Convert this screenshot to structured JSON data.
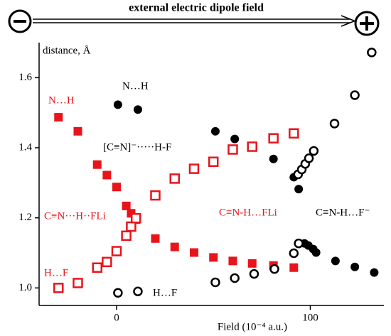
{
  "chart_data": {
    "type": "scatter",
    "title": "external electric dipole field",
    "xlabel": "Field (10⁻⁴ a.u.)",
    "ylabel": "distance, Å",
    "xlim": [
      -40,
      138
    ],
    "ylim": [
      0.95,
      1.7
    ],
    "xticks": [
      0,
      100
    ],
    "yticks": [
      {
        "value": 1,
        "label": "1.0"
      },
      1.2,
      1.4,
      1.6
    ],
    "series": [
      {
        "color": "#e8141c",
        "marker": "square",
        "filled": true,
        "x": [
          -30,
          -20,
          -10,
          -5,
          0,
          5,
          7.5,
          10,
          20,
          30,
          40,
          50,
          60,
          70,
          81,
          91.5
        ],
        "values": [
          1.487,
          1.447,
          1.352,
          1.322,
          1.288,
          1.234,
          1.213,
          1.195,
          1.141,
          1.117,
          1.101,
          1.087,
          1.077,
          1.07,
          1.064,
          1.058
        ]
      },
      {
        "color": "#e8141c",
        "marker": "square",
        "filled": false,
        "x": [
          -30,
          -20,
          -10,
          -5,
          0,
          5,
          7.5,
          10,
          20,
          30,
          40,
          50,
          60,
          70,
          81,
          91.5
        ],
        "values": [
          1.0,
          1.014,
          1.058,
          1.074,
          1.105,
          1.149,
          1.175,
          1.199,
          1.264,
          1.312,
          1.34,
          1.36,
          1.395,
          1.403,
          1.427,
          1.441
        ]
      },
      {
        "color": "#000000",
        "marker": "circle",
        "filled": true,
        "x": [
          0.7,
          11,
          51,
          61,
          81,
          91.5,
          94,
          97,
          99,
          101.5,
          103,
          113,
          123,
          133
        ],
        "values": [
          1.523,
          1.509,
          1.447,
          1.425,
          1.368,
          1.316,
          1.282,
          1.127,
          1.121,
          1.111,
          1.101,
          1.077,
          1.06,
          1.044
        ]
      },
      {
        "color": "#000000",
        "marker": "circle",
        "filled": false,
        "x": [
          0.7,
          11,
          51,
          61,
          71,
          81.5,
          91.5,
          94,
          93.7,
          95.6,
          97.4,
          99.3,
          101.8,
          112.5,
          123,
          131.7
        ],
        "values": [
          0.986,
          0.99,
          1.016,
          1.028,
          1.04,
          1.054,
          1.099,
          1.127,
          1.324,
          1.338,
          1.354,
          1.37,
          1.391,
          1.469,
          1.55,
          1.672
        ]
      }
    ],
    "annotations": [
      {
        "text": "N…H",
        "color": "#000000"
      },
      {
        "text": "N…H",
        "color": "#e8141c"
      },
      {
        "text": "[C≡N]⁻·····H-F",
        "color": "#000000"
      },
      {
        "text": "C≡N···H··FLi",
        "color": "#e8141c"
      },
      {
        "text": "C≡N-H…FLi",
        "color": "#e8141c"
      },
      {
        "text": "C≡N-H…F⁻",
        "color": "#000000"
      },
      {
        "text": "H…F",
        "color": "#e8141c"
      },
      {
        "text": "H…F",
        "color": "#000000"
      }
    ]
  }
}
